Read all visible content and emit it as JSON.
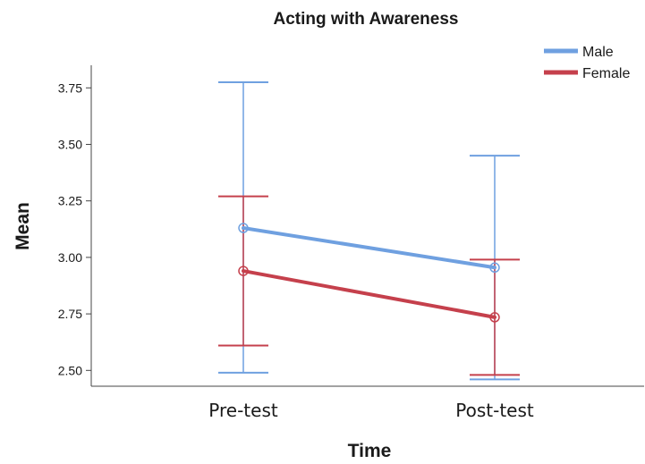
{
  "chart_data": {
    "type": "line",
    "title": "Acting with Awareness",
    "xlabel": "Time",
    "ylabel": "Mean",
    "categories": [
      "Pre-test",
      "Post-test"
    ],
    "yticks": [
      "2.50",
      "2.75",
      "3.00",
      "3.25",
      "3.50",
      "3.75"
    ],
    "ylim": [
      2.43,
      3.85
    ],
    "grid": false,
    "legend_position": "top-right",
    "series": [
      {
        "name": "Male",
        "color": "#6fa0e0",
        "values": [
          3.13,
          2.955
        ],
        "error_low": [
          2.49,
          2.46
        ],
        "error_high": [
          3.775,
          3.45
        ]
      },
      {
        "name": "Female",
        "color": "#c5404c",
        "values": [
          2.94,
          2.735
        ],
        "error_low": [
          2.61,
          2.48
        ],
        "error_high": [
          3.27,
          2.99
        ]
      }
    ]
  }
}
